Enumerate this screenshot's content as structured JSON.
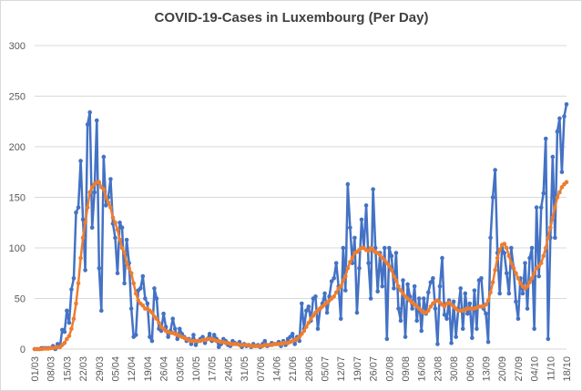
{
  "chart_data": {
    "type": "line",
    "title": "COVID-19-Cases in Luxembourg (Per Day)",
    "categories": [
      "01/03",
      null,
      null,
      null,
      null,
      null,
      null,
      "08/03",
      null,
      null,
      null,
      null,
      null,
      null,
      "15/03",
      null,
      null,
      null,
      null,
      null,
      null,
      "22/03",
      null,
      null,
      null,
      null,
      null,
      null,
      "29/03",
      null,
      null,
      null,
      null,
      null,
      null,
      "05/04",
      null,
      null,
      null,
      null,
      null,
      null,
      "12/04",
      null,
      null,
      null,
      null,
      null,
      null,
      "19/04",
      null,
      null,
      null,
      null,
      null,
      null,
      "26/04",
      null,
      null,
      null,
      null,
      null,
      null,
      "03/05",
      null,
      null,
      null,
      null,
      null,
      null,
      "10/05",
      null,
      null,
      null,
      null,
      null,
      null,
      "17/05",
      null,
      null,
      null,
      null,
      null,
      null,
      "24/05",
      null,
      null,
      null,
      null,
      null,
      null,
      "31/05",
      null,
      null,
      null,
      null,
      null,
      null,
      "07/06",
      null,
      null,
      null,
      null,
      null,
      null,
      "14/06",
      null,
      null,
      null,
      null,
      null,
      null,
      "21/06",
      null,
      null,
      null,
      null,
      null,
      null,
      "28/06",
      null,
      null,
      null,
      null,
      null,
      null,
      "05/07",
      null,
      null,
      null,
      null,
      null,
      null,
      "12/07",
      null,
      null,
      null,
      null,
      null,
      null,
      "19/07",
      null,
      null,
      null,
      null,
      null,
      null,
      "26/07",
      null,
      null,
      null,
      null,
      null,
      null,
      "02/08",
      null,
      null,
      null,
      null,
      null,
      null,
      "09/08",
      null,
      null,
      null,
      null,
      null,
      null,
      "16/08",
      null,
      null,
      null,
      null,
      null,
      null,
      "23/08",
      null,
      null,
      null,
      null,
      null,
      null,
      "30/08",
      null,
      null,
      null,
      null,
      null,
      null,
      "06/09",
      null,
      null,
      null,
      null,
      null,
      null,
      "13/09",
      null,
      null,
      null,
      null,
      null,
      null,
      "20/09",
      null,
      null,
      null,
      null,
      null,
      null,
      "27/09",
      null,
      null,
      null,
      null,
      null,
      null,
      "04/10",
      null,
      null,
      null,
      null,
      null,
      null,
      "11/10",
      null,
      null,
      null,
      null,
      null,
      null,
      "18/10"
    ],
    "series": [
      {
        "color": "#4472c4",
        "values": [
          0,
          0,
          0,
          1,
          1,
          1,
          1,
          1,
          3,
          0,
          5,
          2,
          19,
          17,
          38,
          26,
          59,
          70,
          135,
          140,
          186,
          128,
          78,
          222,
          234,
          120,
          155,
          226,
          80,
          38,
          190,
          142,
          150,
          168,
          124,
          110,
          75,
          125,
          120,
          65,
          108,
          85,
          40,
          12,
          14,
          58,
          60,
          72,
          50,
          45,
          12,
          8,
          60,
          50,
          20,
          18,
          35,
          22,
          12,
          18,
          30,
          20,
          10,
          20,
          15,
          12,
          8,
          10,
          5,
          14,
          4,
          8,
          10,
          12,
          6,
          10,
          15,
          8,
          14,
          10,
          2,
          5,
          10,
          8,
          4,
          3,
          8,
          6,
          5,
          7,
          2,
          5,
          3,
          4,
          2,
          5,
          3,
          4,
          2,
          5,
          8,
          3,
          4,
          6,
          5,
          5,
          7,
          3,
          8,
          4,
          10,
          12,
          15,
          5,
          12,
          8,
          45,
          20,
          38,
          42,
          28,
          50,
          52,
          20,
          40,
          45,
          55,
          36,
          52,
          67,
          70,
          85,
          62,
          30,
          100,
          58,
          163,
          120,
          85,
          110,
          36,
          80,
          128,
          100,
          142,
          85,
          50,
          158,
          100,
          57,
          95,
          62,
          100,
          10,
          100,
          92,
          60,
          95,
          40,
          28,
          68,
          12,
          64,
          52,
          40,
          62,
          28,
          50,
          18,
          50,
          35,
          56,
          66,
          70,
          40,
          5,
          62,
          90,
          34,
          30,
          48,
          6,
          47,
          12,
          40,
          60,
          20,
          55,
          35,
          45,
          11,
          58,
          20,
          68,
          70,
          40,
          35,
          7,
          110,
          150,
          177,
          95,
          55,
          100,
          95,
          75,
          55,
          100,
          80,
          47,
          30,
          70,
          55,
          85,
          40,
          90,
          100,
          20,
          140,
          72,
          140,
          154,
          208,
          10,
          110,
          190,
          110,
          215,
          228,
          175,
          230,
          242
        ]
      },
      {
        "color": "#ed7d31",
        "values": [
          0,
          0,
          0,
          0,
          0.5,
          0.5,
          0.5,
          1,
          1,
          1.5,
          2,
          2,
          4,
          6,
          10,
          13,
          20,
          30,
          45,
          65,
          90,
          110,
          125,
          140,
          155,
          160,
          163,
          165,
          165,
          160,
          158,
          150,
          145,
          140,
          130,
          125,
          118,
          108,
          100,
          95,
          85,
          80,
          75,
          65,
          55,
          48,
          45,
          43,
          40,
          40,
          38,
          36,
          32,
          30,
          26,
          22,
          20,
          18,
          17,
          16,
          16,
          15,
          14,
          13,
          12,
          11,
          10,
          9,
          8,
          8,
          8,
          8,
          8,
          9,
          9,
          10,
          10,
          10,
          9,
          8,
          8,
          7,
          7,
          6,
          6,
          5,
          5,
          5,
          5,
          4,
          4,
          4,
          4,
          4,
          3,
          3,
          3,
          3,
          3,
          3,
          4,
          4,
          4,
          4,
          5,
          5,
          5,
          5,
          6,
          6,
          6,
          7,
          8,
          9,
          10,
          12,
          15,
          18,
          22,
          26,
          30,
          33,
          36,
          38,
          40,
          42,
          44,
          46,
          48,
          50,
          52,
          56,
          60,
          62,
          68,
          72,
          80,
          86,
          90,
          95,
          96,
          98,
          100,
          100,
          98,
          97,
          100,
          98,
          96,
          95,
          93,
          90,
          88,
          85,
          82,
          78,
          72,
          68,
          62,
          58,
          55,
          52,
          50,
          48,
          46,
          44,
          42,
          40,
          38,
          36,
          36,
          38,
          42,
          45,
          47,
          48,
          46,
          44,
          42,
          45,
          46,
          44,
          42,
          40,
          38,
          38,
          38,
          39,
          40,
          40,
          40,
          40,
          41,
          42,
          42,
          42,
          44,
          48,
          56,
          66,
          78,
          90,
          98,
          103,
          104,
          100,
          92,
          85,
          80,
          75,
          70,
          65,
          62,
          60,
          62,
          66,
          70,
          75,
          80,
          82,
          85,
          92,
          100,
          110,
          120,
          130,
          140,
          150,
          155,
          160,
          163,
          165
        ]
      }
    ],
    "ylim": [
      0,
      300
    ],
    "yticks": [
      0,
      50,
      100,
      150,
      200,
      250,
      300
    ],
    "grid": true
  }
}
